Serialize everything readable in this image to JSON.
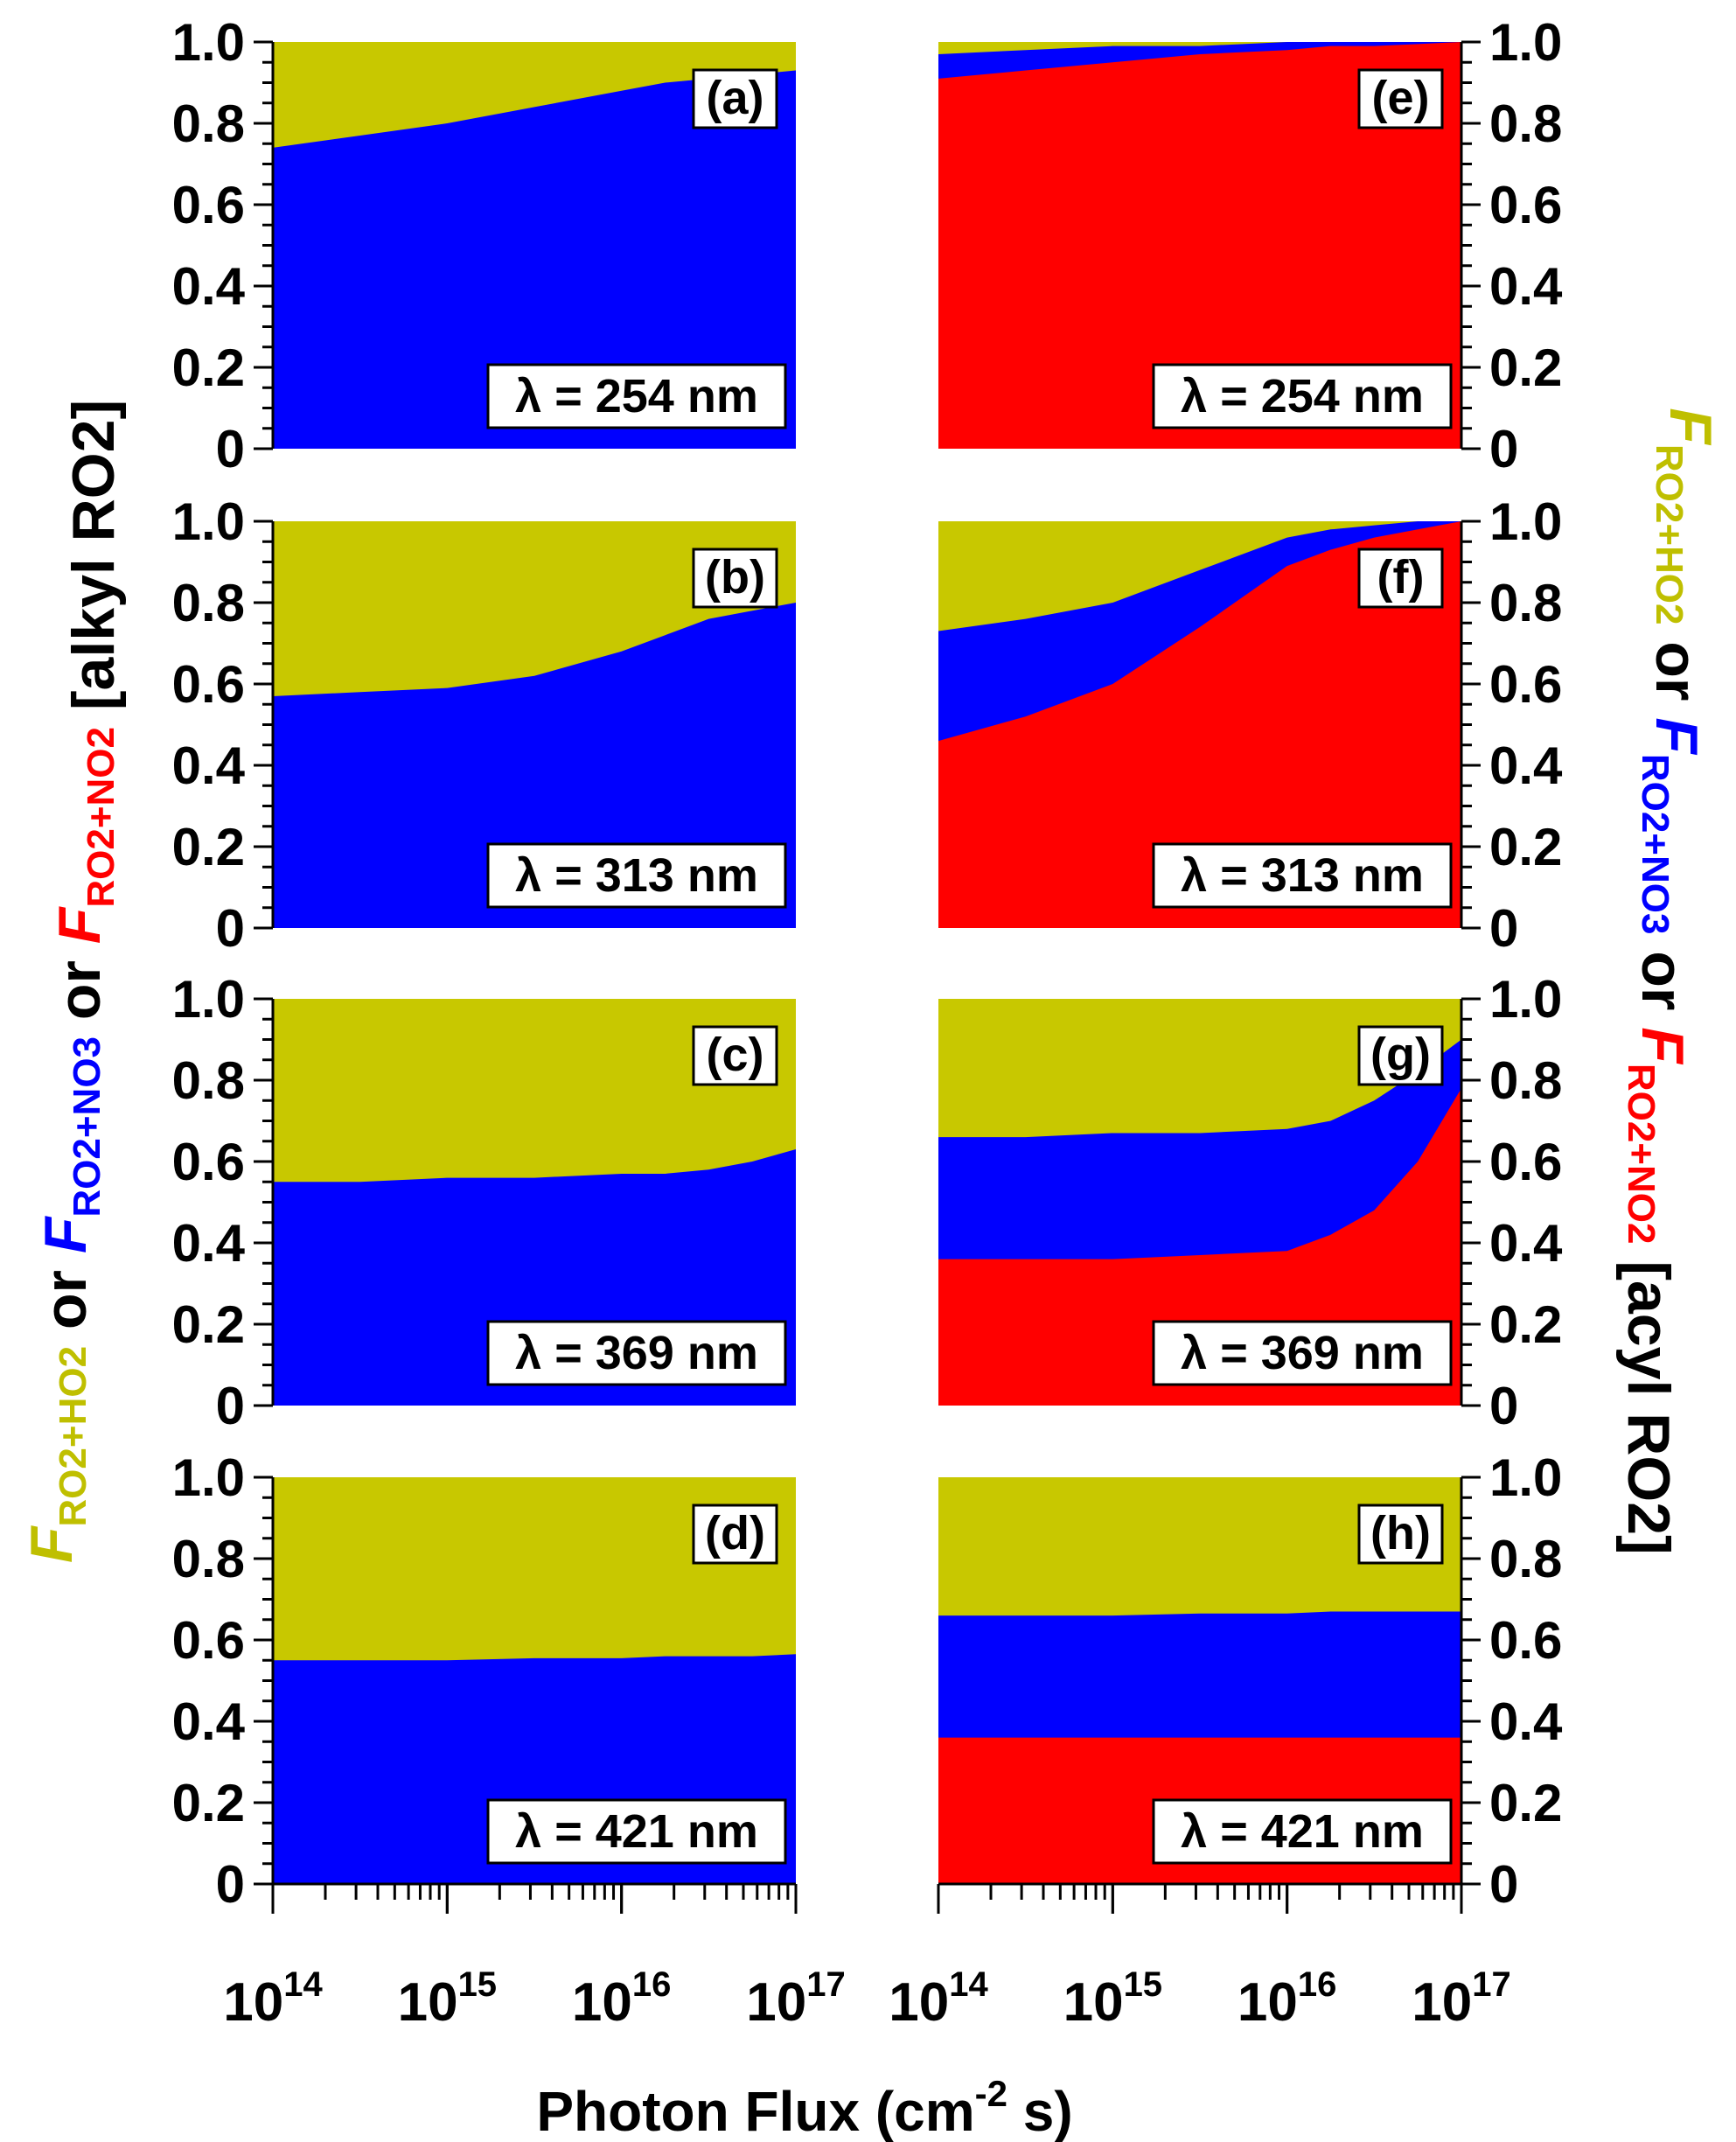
{
  "chart_data": {
    "type": "area",
    "xlabel": "Photon Flux (cm-2 s)",
    "xlabel_parts": {
      "main": "Photon Flux (cm",
      "sup": "-2",
      "tail": " s)"
    },
    "x_scale": "log",
    "xlim": [
      100000000000000.0,
      1e+17
    ],
    "x_ticks": [
      {
        "base": "10",
        "exp": "14"
      },
      {
        "base": "10",
        "exp": "15"
      },
      {
        "base": "10",
        "exp": "16"
      },
      {
        "base": "10",
        "exp": "17"
      }
    ],
    "ylim": [
      0,
      1
    ],
    "y_ticks": [
      "0",
      "0.2",
      "0.4",
      "0.6",
      "0.8",
      "1.0"
    ],
    "left_label": {
      "text": "F RO2+HO2 or F RO2+NO3 or F RO2+NO2 [alkyl RO2]",
      "parts": [
        {
          "t": "F",
          "sub": "RO2+HO2",
          "color": "#bfbf00",
          "italic": true
        },
        {
          "t": " or ",
          "color": "#000000"
        },
        {
          "t": "F",
          "sub": "RO2+NO3",
          "color": "#0000ff",
          "italic": true
        },
        {
          "t": " or ",
          "color": "#000000"
        },
        {
          "t": "F",
          "sub": "RO2+NO2",
          "color": "#ff0000",
          "italic": true
        },
        {
          "t": " [alkyl RO2]",
          "color": "#000000"
        }
      ]
    },
    "right_label": {
      "text": "F RO2+HO2 or F RO2+NO3 or F RO2+NO2 [acyl RO2]",
      "parts": [
        {
          "t": "F",
          "sub": "RO2+HO2",
          "color": "#bfbf00",
          "italic": true
        },
        {
          "t": " or ",
          "color": "#000000"
        },
        {
          "t": "F",
          "sub": "RO2+NO3",
          "color": "#0000ff",
          "italic": true
        },
        {
          "t": " or ",
          "color": "#000000"
        },
        {
          "t": "F",
          "sub": "RO2+NO2",
          "color": "#ff0000",
          "italic": true
        },
        {
          "t": " [acyl RO2]",
          "color": "#000000"
        }
      ]
    },
    "colors": {
      "RO2+HO2": "#c8c800",
      "RO2+NO3": "#0000ff",
      "RO2+NO2": "#ff0000"
    },
    "log_flux": [
      14,
      14.5,
      15,
      15.5,
      16,
      16.25,
      16.5,
      16.75,
      17
    ],
    "panels": [
      {
        "id": "a",
        "tag": "(a)",
        "lambda": "λ = 254 nm",
        "column": "left",
        "row": 0,
        "no2": [
          0,
          0,
          0,
          0,
          0,
          0,
          0,
          0,
          0
        ],
        "no2_no3": [
          0.74,
          0.77,
          0.8,
          0.84,
          0.88,
          0.9,
          0.91,
          0.92,
          0.93
        ]
      },
      {
        "id": "b",
        "tag": "(b)",
        "lambda": "λ = 313 nm",
        "column": "left",
        "row": 1,
        "no2": [
          0,
          0,
          0,
          0,
          0,
          0,
          0,
          0,
          0
        ],
        "no2_no3": [
          0.57,
          0.58,
          0.59,
          0.62,
          0.68,
          0.72,
          0.76,
          0.78,
          0.8
        ]
      },
      {
        "id": "c",
        "tag": "(c)",
        "lambda": "λ = 369 nm",
        "column": "left",
        "row": 2,
        "no2": [
          0,
          0,
          0,
          0,
          0,
          0,
          0,
          0,
          0
        ],
        "no2_no3": [
          0.55,
          0.55,
          0.56,
          0.56,
          0.57,
          0.57,
          0.58,
          0.6,
          0.63
        ]
      },
      {
        "id": "d",
        "tag": "(d)",
        "lambda": "λ = 421 nm",
        "column": "left",
        "row": 3,
        "no2": [
          0,
          0,
          0,
          0,
          0,
          0,
          0,
          0,
          0
        ],
        "no2_no3": [
          0.55,
          0.55,
          0.55,
          0.555,
          0.555,
          0.56,
          0.56,
          0.56,
          0.565
        ]
      },
      {
        "id": "e",
        "tag": "(e)",
        "lambda": "λ = 254 nm",
        "column": "right",
        "row": 0,
        "no2": [
          0.91,
          0.93,
          0.95,
          0.97,
          0.98,
          0.99,
          0.99,
          0.995,
          1.0
        ],
        "no2_no3": [
          0.97,
          0.98,
          0.99,
          0.99,
          1.0,
          1.0,
          1.0,
          1.0,
          1.0
        ]
      },
      {
        "id": "f",
        "tag": "(f)",
        "lambda": "λ = 313 nm",
        "column": "right",
        "row": 1,
        "no2": [
          0.46,
          0.52,
          0.6,
          0.74,
          0.89,
          0.93,
          0.96,
          0.98,
          1.0
        ],
        "no2_no3": [
          0.73,
          0.76,
          0.8,
          0.88,
          0.96,
          0.98,
          0.99,
          1.0,
          1.0
        ]
      },
      {
        "id": "g",
        "tag": "(g)",
        "lambda": "λ = 369 nm",
        "column": "right",
        "row": 2,
        "no2": [
          0.36,
          0.36,
          0.36,
          0.37,
          0.38,
          0.42,
          0.48,
          0.6,
          0.78
        ],
        "no2_no3": [
          0.66,
          0.66,
          0.67,
          0.67,
          0.68,
          0.7,
          0.75,
          0.82,
          0.9
        ]
      },
      {
        "id": "h",
        "tag": "(h)",
        "lambda": "λ = 421 nm",
        "column": "right",
        "row": 3,
        "no2": [
          0.36,
          0.36,
          0.36,
          0.36,
          0.36,
          0.36,
          0.36,
          0.36,
          0.36
        ],
        "no2_no3": [
          0.66,
          0.66,
          0.66,
          0.665,
          0.665,
          0.67,
          0.67,
          0.67,
          0.67
        ]
      }
    ]
  }
}
